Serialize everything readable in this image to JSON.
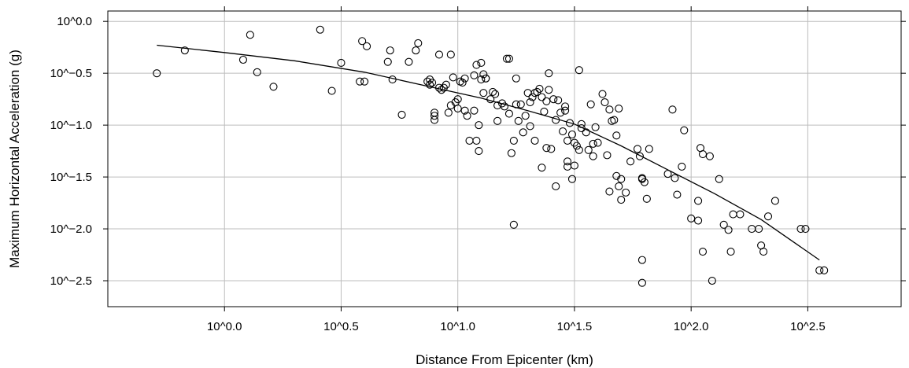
{
  "chart_data": {
    "type": "scatter",
    "title": "",
    "xlabel": "Distance From Epicenter (km)",
    "ylabel": "Maximum Horizontal Acceleration (g)",
    "x_scale": "log10",
    "y_scale": "log10",
    "xlim_log10": [
      -0.5,
      2.9
    ],
    "ylim_log10": [
      -2.75,
      0.1
    ],
    "grid": true,
    "x_ticks": [
      {
        "log10": 0.0,
        "label": "10^0.0"
      },
      {
        "log10": 0.5,
        "label": "10^0.5"
      },
      {
        "log10": 1.0,
        "label": "10^1.0"
      },
      {
        "log10": 1.5,
        "label": "10^1.5"
      },
      {
        "log10": 2.0,
        "label": "10^2.0"
      },
      {
        "log10": 2.5,
        "label": "10^2.5"
      }
    ],
    "y_ticks": [
      {
        "log10": 0.0,
        "label": "10^0.0"
      },
      {
        "log10": -0.5,
        "label": "10^−0.5"
      },
      {
        "log10": -1.0,
        "label": "10^−1.0"
      },
      {
        "log10": -1.5,
        "label": "10^−1.5"
      },
      {
        "log10": -2.0,
        "label": "10^−2.0"
      },
      {
        "log10": -2.5,
        "label": "10^−2.5"
      }
    ],
    "series": [
      {
        "type": "scatter",
        "points_log10": [
          [
            -0.29,
            -0.5
          ],
          [
            -0.17,
            -0.28
          ],
          [
            0.08,
            -0.37
          ],
          [
            0.11,
            -0.13
          ],
          [
            0.14,
            -0.49
          ],
          [
            0.21,
            -0.63
          ],
          [
            0.41,
            -0.08
          ],
          [
            0.46,
            -0.67
          ],
          [
            0.5,
            -0.4
          ],
          [
            0.58,
            -0.58
          ],
          [
            0.59,
            -0.19
          ],
          [
            0.6,
            -0.58
          ],
          [
            0.61,
            -0.24
          ],
          [
            0.7,
            -0.39
          ],
          [
            0.71,
            -0.28
          ],
          [
            0.72,
            -0.56
          ],
          [
            0.76,
            -0.9
          ],
          [
            0.79,
            -0.39
          ],
          [
            0.82,
            -0.28
          ],
          [
            0.83,
            -0.21
          ],
          [
            0.87,
            -0.58
          ],
          [
            0.88,
            -0.56
          ],
          [
            0.88,
            -0.61
          ],
          [
            0.89,
            -0.59
          ],
          [
            0.9,
            -0.88
          ],
          [
            0.9,
            -0.91
          ],
          [
            0.9,
            -0.95
          ],
          [
            0.92,
            -0.32
          ],
          [
            0.92,
            -0.64
          ],
          [
            0.93,
            -0.66
          ],
          [
            0.94,
            -0.64
          ],
          [
            0.95,
            -0.61
          ],
          [
            0.96,
            -0.88
          ],
          [
            0.97,
            -0.32
          ],
          [
            0.97,
            -0.81
          ],
          [
            0.98,
            -0.54
          ],
          [
            0.99,
            -0.78
          ],
          [
            1.0,
            -0.75
          ],
          [
            1.0,
            -0.84
          ],
          [
            1.01,
            -0.58
          ],
          [
            1.02,
            -0.59
          ],
          [
            1.03,
            -0.55
          ],
          [
            1.03,
            -0.86
          ],
          [
            1.04,
            -0.91
          ],
          [
            1.05,
            -1.15
          ],
          [
            1.07,
            -0.86
          ],
          [
            1.08,
            -0.42
          ],
          [
            1.08,
            -1.15
          ],
          [
            1.09,
            -1.0
          ],
          [
            1.1,
            -0.4
          ],
          [
            1.1,
            -0.56
          ],
          [
            1.11,
            -0.51
          ],
          [
            1.11,
            -0.69
          ],
          [
            1.12,
            -0.55
          ],
          [
            1.15,
            -0.68
          ],
          [
            1.16,
            -0.7
          ],
          [
            1.17,
            -0.81
          ],
          [
            1.17,
            -0.96
          ],
          [
            1.19,
            -0.79
          ],
          [
            1.2,
            -0.82
          ],
          [
            1.21,
            -0.36
          ],
          [
            1.22,
            -0.36
          ],
          [
            1.22,
            -0.89
          ],
          [
            1.23,
            -1.27
          ],
          [
            1.24,
            -1.15
          ],
          [
            1.25,
            -0.55
          ],
          [
            1.25,
            -0.8
          ],
          [
            1.26,
            -0.96
          ],
          [
            1.27,
            -0.8
          ],
          [
            1.28,
            -1.07
          ],
          [
            1.29,
            -0.91
          ],
          [
            1.3,
            -0.69
          ],
          [
            1.31,
            -0.78
          ],
          [
            1.31,
            -1.01
          ],
          [
            1.32,
            -0.73
          ],
          [
            1.33,
            -0.69
          ],
          [
            1.34,
            -0.68
          ],
          [
            1.35,
            -0.65
          ],
          [
            1.36,
            -0.73
          ],
          [
            1.37,
            -0.87
          ],
          [
            1.38,
            -0.77
          ],
          [
            1.38,
            -1.22
          ],
          [
            1.39,
            -0.5
          ],
          [
            1.39,
            -0.66
          ],
          [
            1.4,
            -1.23
          ],
          [
            1.41,
            -0.75
          ],
          [
            1.42,
            -0.95
          ],
          [
            1.43,
            -0.76
          ],
          [
            1.44,
            -0.88
          ],
          [
            1.45,
            -1.06
          ],
          [
            1.46,
            -0.82
          ],
          [
            1.46,
            -0.86
          ],
          [
            1.47,
            -1.15
          ],
          [
            1.48,
            -0.98
          ],
          [
            1.49,
            -1.09
          ],
          [
            1.5,
            -1.17
          ],
          [
            1.51,
            -1.2
          ],
          [
            1.52,
            -1.24
          ],
          [
            1.53,
            -0.99
          ],
          [
            1.53,
            -1.03
          ],
          [
            1.55,
            -1.07
          ],
          [
            1.56,
            -1.24
          ],
          [
            1.57,
            -0.8
          ],
          [
            1.58,
            -1.18
          ],
          [
            1.59,
            -1.02
          ],
          [
            1.6,
            -1.17
          ],
          [
            1.62,
            -0.7
          ],
          [
            1.63,
            -0.78
          ],
          [
            1.64,
            -1.29
          ],
          [
            1.65,
            -0.85
          ],
          [
            1.66,
            -0.96
          ],
          [
            1.67,
            -0.95
          ],
          [
            1.68,
            -1.1
          ],
          [
            1.69,
            -0.84
          ],
          [
            1.7,
            -1.52
          ],
          [
            1.74,
            -1.35
          ],
          [
            1.77,
            -1.23
          ],
          [
            1.78,
            -1.3
          ],
          [
            1.79,
            -1.52
          ],
          [
            1.8,
            -1.55
          ],
          [
            1.81,
            -1.71
          ],
          [
            1.82,
            -1.23
          ],
          [
            1.9,
            -1.47
          ],
          [
            1.92,
            -0.85
          ],
          [
            1.93,
            -1.51
          ],
          [
            1.94,
            -1.67
          ],
          [
            1.96,
            -1.4
          ],
          [
            1.97,
            -1.05
          ],
          [
            2.03,
            -1.73
          ],
          [
            2.03,
            -1.92
          ],
          [
            2.04,
            -1.22
          ],
          [
            2.05,
            -1.28
          ],
          [
            2.08,
            -1.3
          ],
          [
            2.09,
            -2.5
          ],
          [
            2.12,
            -1.52
          ],
          [
            2.14,
            -1.96
          ],
          [
            2.16,
            -2.01
          ],
          [
            2.17,
            -2.22
          ],
          [
            2.18,
            -1.86
          ],
          [
            2.21,
            -1.86
          ],
          [
            2.26,
            -2.0
          ],
          [
            2.29,
            -2.0
          ],
          [
            2.3,
            -2.16
          ],
          [
            2.31,
            -2.22
          ],
          [
            2.33,
            -1.88
          ],
          [
            2.36,
            -1.73
          ],
          [
            2.47,
            -2.0
          ],
          [
            2.49,
            -2.0
          ],
          [
            2.55,
            -2.4
          ],
          [
            2.57,
            -2.4
          ],
          [
            1.24,
            -1.96
          ],
          [
            1.79,
            -2.3
          ],
          [
            1.79,
            -2.52
          ],
          [
            2.05,
            -2.22
          ],
          [
            2.0,
            -1.9
          ],
          [
            1.47,
            -1.35
          ],
          [
            1.5,
            -1.39
          ],
          [
            1.42,
            -1.59
          ],
          [
            1.33,
            -1.15
          ],
          [
            1.09,
            -1.25
          ],
          [
            1.12,
            -0.55
          ],
          [
            1.36,
            -1.41
          ],
          [
            1.47,
            -1.4
          ],
          [
            1.49,
            -1.52
          ],
          [
            1.52,
            -0.47
          ],
          [
            1.58,
            -1.3
          ],
          [
            1.65,
            -1.64
          ],
          [
            1.68,
            -1.49
          ],
          [
            1.69,
            -1.59
          ],
          [
            1.7,
            -1.72
          ],
          [
            1.72,
            -1.65
          ],
          [
            1.79,
            -1.51
          ],
          [
            1.14,
            -0.75
          ],
          [
            1.07,
            -0.52
          ]
        ]
      },
      {
        "type": "line",
        "points_log10": [
          [
            -0.29,
            -0.23
          ],
          [
            0.0,
            -0.3
          ],
          [
            0.3,
            -0.38
          ],
          [
            0.6,
            -0.49
          ],
          [
            0.9,
            -0.64
          ],
          [
            1.1,
            -0.74
          ],
          [
            1.3,
            -0.86
          ],
          [
            1.5,
            -0.99
          ],
          [
            1.7,
            -1.2
          ],
          [
            1.9,
            -1.43
          ],
          [
            2.1,
            -1.66
          ],
          [
            2.3,
            -1.91
          ],
          [
            2.55,
            -2.3
          ]
        ]
      }
    ]
  }
}
